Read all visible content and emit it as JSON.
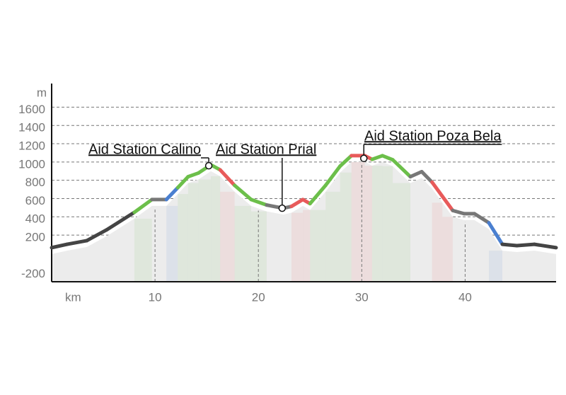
{
  "chart_data": {
    "type": "elevation",
    "x_label": "km",
    "y_label": "m",
    "x": [
      0,
      1.5,
      3.4,
      5.3,
      8,
      9.7,
      11.1,
      12.2,
      13.2,
      14.2,
      15.4,
      16.3,
      17.7,
      19.3,
      20.8,
      22.4,
      23.2,
      24.3,
      25,
      26.5,
      27.9,
      29,
      30.3,
      31,
      32,
      33,
      34.7,
      35.8,
      36.8,
      37.8,
      38.8,
      39.9,
      40.9,
      42.3,
      43.6,
      45,
      46.7,
      48.8
    ],
    "values": [
      93,
      130,
      170,
      287,
      480,
      620,
      620,
      750,
      870,
      910,
      1000,
      945,
      775,
      620,
      560,
      525,
      545,
      620,
      575,
      775,
      985,
      1100,
      1100,
      1060,
      1100,
      1055,
      870,
      925,
      810,
      655,
      500,
      465,
      465,
      365,
      130,
      115,
      130,
      93
    ],
    "segment_colors": [
      "#444",
      "#444",
      "#444",
      "#444",
      "#6cbf4a",
      "#777",
      "#4a7fd0",
      "#6cbf4a",
      "#6cbf4a",
      "#6cbf4a",
      "#6cbf4a",
      "#e85a5a",
      "#6cbf4a",
      "#6cbf4a",
      "#777",
      "#777",
      "#e85a5a",
      "#e85a5a",
      "#6cbf4a",
      "#6cbf4a",
      "#6cbf4a",
      "#e85a5a",
      "#e85a5a",
      "#6cbf4a",
      "#6cbf4a",
      "#6cbf4a",
      "#777",
      "#777",
      "#e85a5a",
      "#e85a5a",
      "#777",
      "#777",
      "#777",
      "#4a7fd0",
      "#444",
      "#444",
      "#444"
    ],
    "xlim": [
      0,
      48.8
    ],
    "ylim": [
      -280,
      1890
    ],
    "xticks": [
      10,
      20,
      30,
      40
    ],
    "yticks": [
      -200,
      200,
      400,
      600,
      800,
      1000,
      1200,
      1400,
      1600
    ],
    "annotations": [
      {
        "text": "Aid Station Calino",
        "x": 15.2,
        "y": 990
      },
      {
        "text": "Aid Station Prial",
        "x": 22.3,
        "y": 525
      },
      {
        "text": "Aid Station Poza Bela",
        "x": 30.2,
        "y": 1070
      }
    ]
  }
}
